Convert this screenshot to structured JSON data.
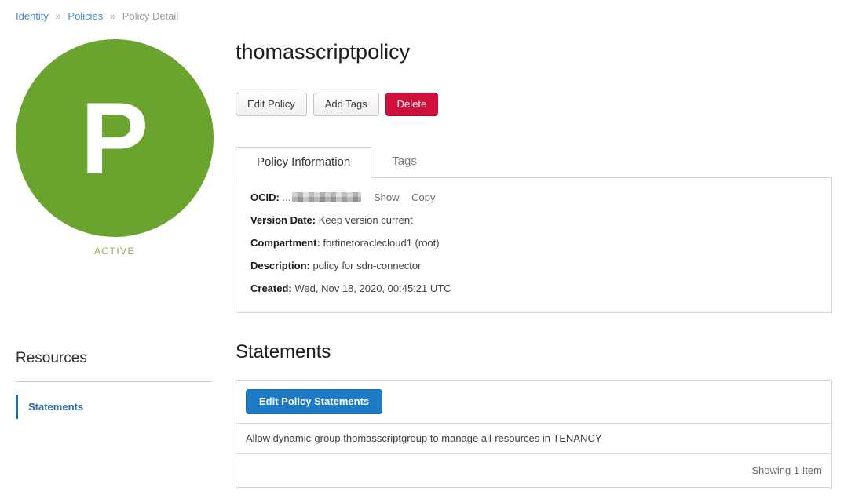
{
  "breadcrumb": {
    "separator": "»",
    "items": [
      {
        "label": "Identity"
      },
      {
        "label": "Policies"
      },
      {
        "label": "Policy Detail"
      }
    ]
  },
  "avatar": {
    "letter": "P",
    "status": "ACTIVE"
  },
  "header": {
    "title": "thomasscriptpolicy",
    "edit_policy_label": "Edit Policy",
    "add_tags_label": "Add Tags",
    "delete_label": "Delete"
  },
  "tabs": [
    {
      "label": "Policy Information"
    },
    {
      "label": "Tags"
    }
  ],
  "policy_info": {
    "ocid_label": "OCID:",
    "ocid_prefix": "...",
    "show_label": "Show",
    "copy_label": "Copy",
    "fields": [
      {
        "label": "Version Date:",
        "value": "Keep version current"
      },
      {
        "label": "Compartment:",
        "value": "fortinetoraclecloud1 (root)"
      },
      {
        "label": "Description:",
        "value": "policy for sdn-connector"
      },
      {
        "label": "Created:",
        "value": "Wed, Nov 18, 2020, 00:45:21 UTC"
      }
    ]
  },
  "resources": {
    "title": "Resources",
    "items": [
      {
        "label": "Statements"
      }
    ]
  },
  "statements": {
    "title": "Statements",
    "edit_button_label": "Edit Policy Statements",
    "rows": [
      {
        "text": "Allow dynamic-group thomasscriptgroup to manage all-resources in TENANCY"
      }
    ],
    "footer": "Showing 1 Item"
  },
  "colors": {
    "active_green": "#6ba32f",
    "status_text_green": "#82b157",
    "link_blue": "#4a86c8",
    "sidebar_blue": "#2b6a9f",
    "primary_blue": "#1f7ac6",
    "danger_red": "#d0103c"
  }
}
